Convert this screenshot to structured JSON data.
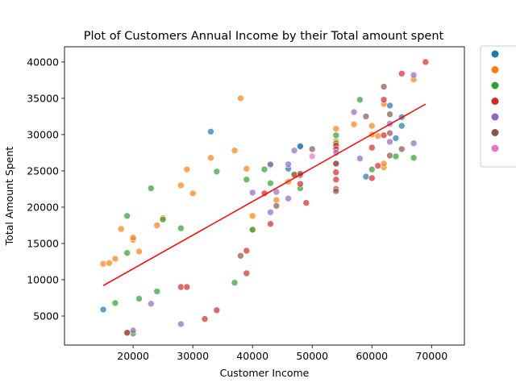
{
  "chart_data": {
    "type": "scatter",
    "title": "Plot of Customers Annual Income by their Total amount spent",
    "xlabel": "Customer Income",
    "ylabel": "Total Amount Spent",
    "xlim": [
      8500,
      75500
    ],
    "ylim": [
      1000,
      42100
    ],
    "xticks": [
      20000,
      30000,
      40000,
      50000,
      60000,
      70000
    ],
    "yticks": [
      5000,
      10000,
      15000,
      20000,
      25000,
      30000,
      35000,
      40000
    ],
    "grid": false,
    "legend_position": "outside-right",
    "series": [
      {
        "color": "#1f77b4",
        "points": [
          [
            15000,
            5900
          ],
          [
            33000,
            30400
          ],
          [
            46000,
            25300
          ],
          [
            48000,
            28300
          ],
          [
            48000,
            28400
          ],
          [
            59000,
            24200
          ],
          [
            63000,
            34000
          ],
          [
            64000,
            29500
          ],
          [
            65000,
            32400
          ],
          [
            65000,
            31200
          ]
        ]
      },
      {
        "color": "#ff7f0e",
        "points": [
          [
            15000,
            12200
          ],
          [
            16000,
            12300
          ],
          [
            17000,
            12900
          ],
          [
            18000,
            17000
          ],
          [
            20000,
            15500
          ],
          [
            20000,
            15800
          ],
          [
            21000,
            13900
          ],
          [
            24000,
            17500
          ],
          [
            25000,
            18500
          ],
          [
            28000,
            23000
          ],
          [
            29000,
            25200
          ],
          [
            30000,
            21900
          ],
          [
            33000,
            26800
          ],
          [
            37000,
            27800
          ],
          [
            38000,
            35000
          ],
          [
            39000,
            25300
          ],
          [
            40000,
            18800
          ],
          [
            40000,
            16900
          ],
          [
            44000,
            21000
          ],
          [
            46000,
            23500
          ],
          [
            47000,
            24400
          ],
          [
            54000,
            30800
          ],
          [
            54000,
            29100
          ],
          [
            57000,
            31400
          ],
          [
            60000,
            31200
          ],
          [
            60000,
            30000
          ],
          [
            61000,
            29800
          ],
          [
            62000,
            25500
          ],
          [
            62000,
            26000
          ],
          [
            62000,
            34200
          ],
          [
            67000,
            37600
          ]
        ]
      },
      {
        "color": "#2ca02c",
        "points": [
          [
            17000,
            6800
          ],
          [
            19000,
            18800
          ],
          [
            19000,
            13700
          ],
          [
            20000,
            2600
          ],
          [
            21000,
            7400
          ],
          [
            23000,
            22600
          ],
          [
            24000,
            8400
          ],
          [
            25000,
            18300
          ],
          [
            28000,
            17100
          ],
          [
            34000,
            24900
          ],
          [
            37000,
            9600
          ],
          [
            39000,
            23800
          ],
          [
            40000,
            16900
          ],
          [
            42000,
            25200
          ],
          [
            43000,
            25800
          ],
          [
            43000,
            23300
          ],
          [
            48000,
            22600
          ],
          [
            54000,
            29900
          ],
          [
            54000,
            28800
          ],
          [
            58000,
            34800
          ],
          [
            60000,
            25200
          ],
          [
            64000,
            27000
          ],
          [
            67000,
            26800
          ]
        ]
      },
      {
        "color": "#d62728",
        "points": [
          [
            19000,
            2700
          ],
          [
            28000,
            9000
          ],
          [
            29000,
            9000
          ],
          [
            32000,
            4600
          ],
          [
            34000,
            5800
          ],
          [
            39000,
            14000
          ],
          [
            39000,
            10900
          ],
          [
            42000,
            21900
          ],
          [
            43000,
            17700
          ],
          [
            48000,
            24400
          ],
          [
            48000,
            23200
          ],
          [
            49000,
            20600
          ],
          [
            54000,
            28500
          ],
          [
            54000,
            28000
          ],
          [
            54000,
            26000
          ],
          [
            54000,
            24800
          ],
          [
            54000,
            23800
          ],
          [
            54000,
            22500
          ],
          [
            60000,
            28200
          ],
          [
            60000,
            24000
          ],
          [
            61000,
            25700
          ],
          [
            62000,
            29900
          ],
          [
            62000,
            34800
          ],
          [
            65000,
            38400
          ],
          [
            69000,
            40000
          ]
        ]
      },
      {
        "color": "#9467bd",
        "points": [
          [
            20000,
            3000
          ],
          [
            23000,
            6700
          ],
          [
            28000,
            3900
          ],
          [
            40000,
            22000
          ],
          [
            43000,
            25900
          ],
          [
            43000,
            19300
          ],
          [
            44000,
            22100
          ],
          [
            46000,
            21200
          ],
          [
            46000,
            25900
          ],
          [
            47000,
            27800
          ],
          [
            54000,
            27500
          ],
          [
            57000,
            33100
          ],
          [
            58000,
            26700
          ],
          [
            63000,
            29000
          ],
          [
            63000,
            31500
          ],
          [
            67000,
            38200
          ],
          [
            67000,
            28800
          ]
        ]
      },
      {
        "color": "#8c564b",
        "points": [
          [
            19000,
            2700
          ],
          [
            38000,
            13300
          ],
          [
            44000,
            20200
          ],
          [
            47000,
            24500
          ],
          [
            48000,
            24600
          ],
          [
            50000,
            28000
          ],
          [
            54000,
            26000
          ],
          [
            54000,
            22200
          ],
          [
            59000,
            32500
          ],
          [
            62000,
            36600
          ],
          [
            63000,
            27100
          ],
          [
            63000,
            30200
          ],
          [
            63000,
            32800
          ],
          [
            65000,
            28000
          ]
        ]
      },
      {
        "color": "#e377c2",
        "points": [
          [
            50000,
            27000
          ]
        ]
      }
    ],
    "regression_line": {
      "color": "#ff0000",
      "x": [
        15000,
        69000
      ],
      "y": [
        9200,
        34200
      ]
    },
    "legend": {
      "colors": [
        "#1f77b4",
        "#ff7f0e",
        "#2ca02c",
        "#d62728",
        "#9467bd",
        "#8c564b",
        "#e377c2"
      ]
    }
  }
}
